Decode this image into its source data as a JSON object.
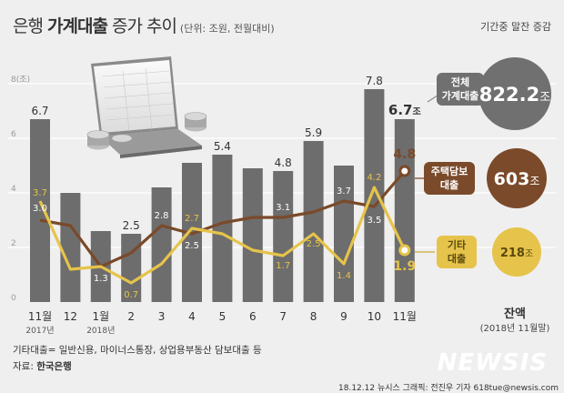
{
  "title": {
    "pre": "은행 ",
    "bold": "가계대출",
    "post": " 증가 추이",
    "unit": "(단위: 조원, 전월대비)"
  },
  "top_right": "기간중 말잔 증감",
  "y_unit": "8(조)",
  "callouts": {
    "total": {
      "label_l1": "전체",
      "label_l2": "가계대출",
      "value": "822.2",
      "suffix": "조"
    },
    "mortgage": {
      "label_l1": "주택담보",
      "label_l2": "대출",
      "value": "603",
      "suffix": "조"
    },
    "other": {
      "label_l1": "기타",
      "label_l2": "대출",
      "value": "218",
      "suffix": "조"
    },
    "balance_title": "잔액",
    "balance_date": "(2018년 11월말)"
  },
  "footnote": "기타대출= 일반신용, 마이너스통장, 상업용부동산 담보대출 등",
  "source_label": "자료: ",
  "source_value": "한국은행",
  "credit": "18.12.12  뉴시스 그래픽: 전진우 기자  618tue@newsis.com",
  "watermark": "NEWSIS",
  "colors": {
    "bar": "#6d6d6d",
    "mortgage": "#7a4a2a",
    "other": "#e6c34a",
    "total_circle": "#707070",
    "bg": "#efefef"
  },
  "chart_data": {
    "type": "bar",
    "categories": [
      "11월",
      "12",
      "1월",
      "2",
      "3",
      "4",
      "5",
      "6",
      "7",
      "8",
      "9",
      "10",
      "11월"
    ],
    "year_labels": [
      "2017년",
      "",
      "2018년",
      "",
      "",
      "",
      "",
      "",
      "",
      "",
      "",
      "",
      ""
    ],
    "ylim": [
      0,
      8
    ],
    "yticks": [
      "0",
      "2",
      "4",
      "6"
    ],
    "series": [
      {
        "name": "전체 가계대출",
        "type": "bar",
        "values": [
          6.7,
          4.0,
          2.6,
          2.5,
          4.2,
          5.1,
          5.4,
          4.9,
          4.8,
          5.9,
          5.0,
          7.8,
          6.7
        ],
        "labels": [
          "6.7",
          "",
          "",
          "2.5",
          "",
          "",
          "5.4",
          "",
          "4.8",
          "5.9",
          "",
          "7.8",
          "6.7"
        ]
      },
      {
        "name": "주택담보대출",
        "type": "line",
        "values": [
          3.0,
          2.8,
          1.3,
          1.8,
          2.8,
          2.5,
          2.9,
          3.1,
          3.1,
          3.3,
          3.7,
          3.5,
          4.8
        ],
        "labels": [
          "3.0",
          "",
          "1.3",
          "",
          "2.8",
          "2.5",
          "",
          "",
          "3.1",
          "",
          "3.7",
          "3.5",
          "4.8"
        ]
      },
      {
        "name": "기타대출",
        "type": "line",
        "values": [
          3.7,
          1.2,
          1.3,
          0.7,
          1.4,
          2.7,
          2.5,
          1.9,
          1.7,
          2.5,
          1.4,
          4.2,
          1.9
        ],
        "labels": [
          "3.7",
          "",
          "",
          "0.7",
          "",
          "2.7",
          "",
          "",
          "1.7",
          "2.5",
          "1.4",
          "4.2",
          "1.9"
        ]
      }
    ]
  }
}
